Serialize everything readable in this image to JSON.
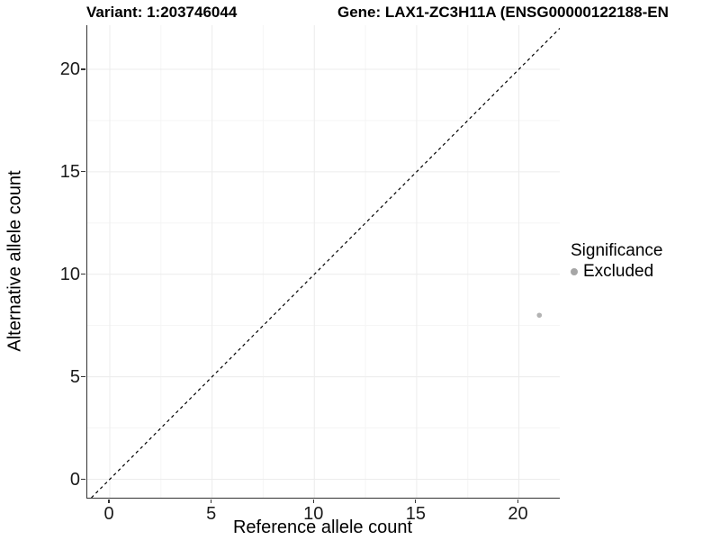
{
  "header": {
    "variant_title": "Variant: 1:203746044",
    "gene_title": "Gene: LAX1-ZC3H11A (ENSG00000122188-EN"
  },
  "chart_data": {
    "type": "scatter",
    "xlabel": "Reference allele count",
    "ylabel": "Alternative allele count",
    "xlim": [
      -1.1,
      22.0
    ],
    "ylim": [
      -0.9,
      22.15
    ],
    "x_ticks": [
      0,
      5,
      10,
      15,
      20
    ],
    "y_ticks": [
      0,
      5,
      10,
      15,
      20
    ],
    "x_minor_gridlines": [
      2.5,
      7.5,
      12.5,
      17.5
    ],
    "y_minor_gridlines": [
      2.5,
      7.5,
      12.5,
      17.5
    ],
    "grid": "major and minor gridlines on white background",
    "series": [
      {
        "name": "Excluded",
        "color": "#b3b3b3",
        "points": [
          {
            "x": 21,
            "y": 8
          }
        ]
      }
    ],
    "reference_line": {
      "kind": "identity y=x",
      "style": "dashed",
      "color": "#000000"
    },
    "legend": {
      "title": "Significance",
      "position": "right",
      "items": [
        {
          "label": "Excluded",
          "color": "#a6a6a6"
        }
      ]
    }
  },
  "style": {
    "axis_line_color": "#333333",
    "major_grid_color": "#ececec",
    "minor_grid_color": "#f5f5f5",
    "tick_label_color": "#1a1a1a",
    "background": "#ffffff"
  }
}
